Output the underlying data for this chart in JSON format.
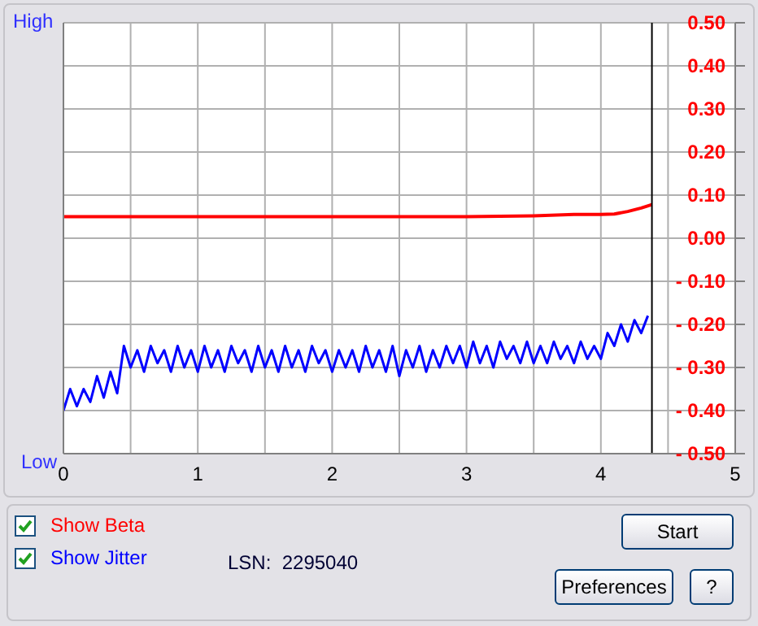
{
  "chart_data": {
    "type": "line",
    "x": [
      0,
      0.05,
      0.1,
      0.15,
      0.2,
      0.25,
      0.3,
      0.35,
      0.4,
      0.45,
      0.5,
      0.55,
      0.6,
      0.65,
      0.7,
      0.75,
      0.8,
      0.85,
      0.9,
      0.95,
      1,
      1.05,
      1.1,
      1.15,
      1.2,
      1.25,
      1.3,
      1.35,
      1.4,
      1.45,
      1.5,
      1.55,
      1.6,
      1.65,
      1.7,
      1.75,
      1.8,
      1.85,
      1.9,
      1.95,
      2,
      2.05,
      2.1,
      2.15,
      2.2,
      2.25,
      2.3,
      2.35,
      2.4,
      2.45,
      2.5,
      2.55,
      2.6,
      2.65,
      2.7,
      2.75,
      2.8,
      2.85,
      2.9,
      2.95,
      3,
      3.05,
      3.1,
      3.15,
      3.2,
      3.25,
      3.3,
      3.35,
      3.4,
      3.45,
      3.5,
      3.55,
      3.6,
      3.65,
      3.7,
      3.75,
      3.8,
      3.85,
      3.9,
      3.95,
      4,
      4.05,
      4.1,
      4.15,
      4.2,
      4.25,
      4.3,
      4.35
    ],
    "series": [
      {
        "name": "Show Beta",
        "color": "#ff0000",
        "x": [
          0,
          0.5,
          1,
          1.5,
          2,
          2.5,
          3,
          3.5,
          3.8,
          4,
          4.1,
          4.2,
          4.3,
          4.38
        ],
        "values": [
          0.05,
          0.05,
          0.05,
          0.05,
          0.05,
          0.05,
          0.05,
          0.052,
          0.055,
          0.055,
          0.056,
          0.062,
          0.07,
          0.078
        ]
      },
      {
        "name": "Show Jitter",
        "color": "#0000ff",
        "values": [
          -0.4,
          -0.35,
          -0.39,
          -0.35,
          -0.38,
          -0.32,
          -0.37,
          -0.31,
          -0.36,
          -0.25,
          -0.3,
          -0.26,
          -0.31,
          -0.25,
          -0.29,
          -0.26,
          -0.31,
          -0.25,
          -0.3,
          -0.26,
          -0.31,
          -0.25,
          -0.3,
          -0.26,
          -0.31,
          -0.25,
          -0.29,
          -0.26,
          -0.31,
          -0.25,
          -0.3,
          -0.26,
          -0.31,
          -0.25,
          -0.3,
          -0.26,
          -0.31,
          -0.25,
          -0.29,
          -0.26,
          -0.31,
          -0.26,
          -0.3,
          -0.26,
          -0.31,
          -0.25,
          -0.3,
          -0.26,
          -0.31,
          -0.25,
          -0.32,
          -0.26,
          -0.3,
          -0.25,
          -0.31,
          -0.26,
          -0.3,
          -0.25,
          -0.29,
          -0.25,
          -0.3,
          -0.24,
          -0.29,
          -0.25,
          -0.3,
          -0.24,
          -0.28,
          -0.25,
          -0.29,
          -0.24,
          -0.29,
          -0.25,
          -0.29,
          -0.24,
          -0.28,
          -0.25,
          -0.29,
          -0.24,
          -0.28,
          -0.25,
          -0.28,
          -0.22,
          -0.25,
          -0.2,
          -0.24,
          -0.19,
          -0.22,
          -0.18
        ]
      }
    ],
    "xlim": [
      0,
      5
    ],
    "xticks": [
      0,
      {
        "value": 0.5,
        "label": null
      },
      1,
      {
        "value": 1.5,
        "label": null
      },
      2,
      {
        "value": 2.5,
        "label": null
      },
      3,
      {
        "value": 3.5,
        "label": null
      },
      4,
      {
        "value": 4.5,
        "label": null
      },
      5
    ],
    "ylim": [
      -0.5,
      0.5
    ],
    "yticks": [
      {
        "value": -0.5,
        "label": "- 0.50"
      },
      {
        "value": -0.4,
        "label": "- 0.40"
      },
      {
        "value": -0.3,
        "label": "- 0.30"
      },
      {
        "value": -0.2,
        "label": "- 0.20"
      },
      {
        "value": -0.1,
        "label": "- 0.10"
      },
      {
        "value": 0,
        "label": "0.00"
      },
      {
        "value": 0.1,
        "label": "0.10"
      },
      {
        "value": 0.2,
        "label": "0.20"
      },
      {
        "value": 0.3,
        "label": "0.30"
      },
      {
        "value": 0.4,
        "label": "0.40"
      },
      {
        "value": 0.5,
        "label": "0.50"
      }
    ],
    "ref_lines": [
      {
        "axis": "x",
        "value": 4.38,
        "color": "#000000"
      }
    ],
    "grid": true,
    "legend": "bottom",
    "marker": "none",
    "line_style": "solid",
    "annotations": [
      "High",
      "Low",
      "LSN:  2295040",
      "Start",
      "Preferences",
      "?"
    ]
  }
}
